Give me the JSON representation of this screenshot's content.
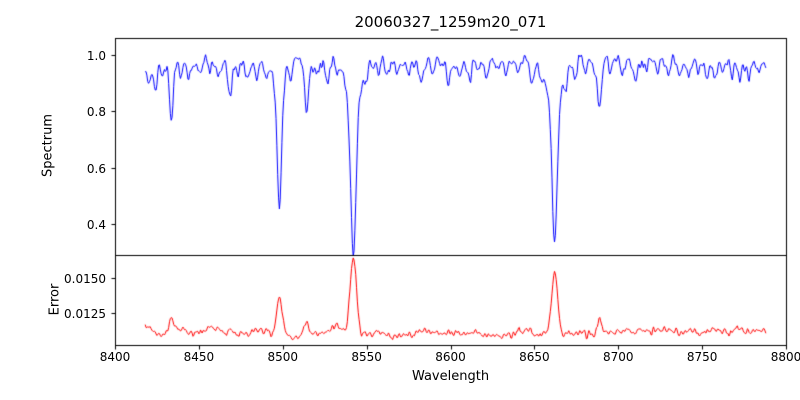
{
  "figure": {
    "title": "20060327_1259m20_071",
    "xlabel": "Wavelength",
    "background": "#ffffff",
    "axis_color": "#000000"
  },
  "chart_data": [
    {
      "type": "line",
      "name": "spectrum-panel",
      "ylabel": "Spectrum",
      "color": "#0000ff",
      "xlim": [
        8400,
        8800
      ],
      "ylim": [
        0.29,
        1.06
      ],
      "yticks": [
        0.4,
        0.6,
        0.8,
        1.0
      ],
      "ytick_decimals": 1,
      "x_start": 8418,
      "x_end": 8788,
      "x_step": 0.5,
      "seed": 11,
      "continuum": 0.975,
      "noise_sigma": 0.011,
      "continuum_wiggle": 0.008,
      "absorption_lines": [
        {
          "c": 8420.5,
          "d": 0.05,
          "w": 0.9
        },
        {
          "c": 8424.2,
          "d": 0.09,
          "w": 1.0
        },
        {
          "c": 8428.6,
          "d": 0.05,
          "w": 0.9
        },
        {
          "c": 8433.6,
          "d": 0.2,
          "w": 1.1
        },
        {
          "c": 8439.4,
          "d": 0.06,
          "w": 0.9
        },
        {
          "c": 8444.0,
          "d": 0.04,
          "w": 0.9
        },
        {
          "c": 8451.0,
          "d": 0.06,
          "w": 1.0
        },
        {
          "c": 8456.3,
          "d": 0.04,
          "w": 0.9
        },
        {
          "c": 8462.0,
          "d": 0.05,
          "w": 0.9
        },
        {
          "c": 8468.4,
          "d": 0.11,
          "w": 1.1
        },
        {
          "c": 8473.5,
          "d": 0.04,
          "w": 0.9
        },
        {
          "c": 8478.8,
          "d": 0.04,
          "w": 0.9
        },
        {
          "c": 8484.4,
          "d": 0.05,
          "w": 0.9
        },
        {
          "c": 8490.2,
          "d": 0.04,
          "w": 0.9
        },
        {
          "c": 8498.0,
          "d": 0.42,
          "w": 1.3
        },
        {
          "c": 8498.0,
          "d": 0.09,
          "w": 3.6
        },
        {
          "c": 8505.0,
          "d": 0.05,
          "w": 0.9
        },
        {
          "c": 8514.1,
          "d": 0.16,
          "w": 1.1
        },
        {
          "c": 8520.5,
          "d": 0.04,
          "w": 0.9
        },
        {
          "c": 8526.7,
          "d": 0.05,
          "w": 0.9
        },
        {
          "c": 8532.3,
          "d": 0.04,
          "w": 0.9
        },
        {
          "c": 8542.1,
          "d": 0.55,
          "w": 1.6
        },
        {
          "c": 8542.1,
          "d": 0.12,
          "w": 5.0
        },
        {
          "c": 8550.4,
          "d": 0.04,
          "w": 0.9
        },
        {
          "c": 8556.8,
          "d": 0.04,
          "w": 0.9
        },
        {
          "c": 8561.9,
          "d": 0.05,
          "w": 0.9
        },
        {
          "c": 8568.3,
          "d": 0.04,
          "w": 0.9
        },
        {
          "c": 8575.1,
          "d": 0.05,
          "w": 0.9
        },
        {
          "c": 8582.3,
          "d": 0.07,
          "w": 1.0
        },
        {
          "c": 8589.5,
          "d": 0.04,
          "w": 0.9
        },
        {
          "c": 8598.8,
          "d": 0.09,
          "w": 1.0
        },
        {
          "c": 8605.2,
          "d": 0.04,
          "w": 0.9
        },
        {
          "c": 8611.4,
          "d": 0.07,
          "w": 1.0
        },
        {
          "c": 8616.6,
          "d": 0.04,
          "w": 0.9
        },
        {
          "c": 8621.4,
          "d": 0.06,
          "w": 1.0
        },
        {
          "c": 8627.5,
          "d": 0.04,
          "w": 0.9
        },
        {
          "c": 8633.0,
          "d": 0.04,
          "w": 0.9
        },
        {
          "c": 8640.1,
          "d": 0.05,
          "w": 0.9
        },
        {
          "c": 8648.5,
          "d": 0.06,
          "w": 1.0
        },
        {
          "c": 8654.0,
          "d": 0.04,
          "w": 0.9
        },
        {
          "c": 8662.1,
          "d": 0.5,
          "w": 1.5
        },
        {
          "c": 8662.1,
          "d": 0.13,
          "w": 4.5
        },
        {
          "c": 8668.9,
          "d": 0.04,
          "w": 0.9
        },
        {
          "c": 8674.8,
          "d": 0.07,
          "w": 1.0
        },
        {
          "c": 8680.4,
          "d": 0.04,
          "w": 0.9
        },
        {
          "c": 8688.6,
          "d": 0.19,
          "w": 1.3
        },
        {
          "c": 8695.2,
          "d": 0.05,
          "w": 0.9
        },
        {
          "c": 8702.3,
          "d": 0.04,
          "w": 0.9
        },
        {
          "c": 8710.4,
          "d": 0.06,
          "w": 1.0
        },
        {
          "c": 8717.0,
          "d": 0.04,
          "w": 0.9
        },
        {
          "c": 8723.6,
          "d": 0.04,
          "w": 0.9
        },
        {
          "c": 8729.9,
          "d": 0.05,
          "w": 0.9
        },
        {
          "c": 8736.4,
          "d": 0.06,
          "w": 1.0
        },
        {
          "c": 8742.0,
          "d": 0.04,
          "w": 0.9
        },
        {
          "c": 8747.8,
          "d": 0.05,
          "w": 0.9
        },
        {
          "c": 8752.9,
          "d": 0.04,
          "w": 0.9
        },
        {
          "c": 8757.6,
          "d": 0.06,
          "w": 1.0
        },
        {
          "c": 8762.3,
          "d": 0.04,
          "w": 0.9
        },
        {
          "c": 8767.9,
          "d": 0.05,
          "w": 0.9
        },
        {
          "c": 8772.5,
          "d": 0.06,
          "w": 1.0
        },
        {
          "c": 8778.2,
          "d": 0.04,
          "w": 0.9
        },
        {
          "c": 8783.5,
          "d": 0.04,
          "w": 0.9
        }
      ]
    },
    {
      "type": "line",
      "name": "error-panel",
      "ylabel": "Error",
      "color": "#ff0000",
      "xlim": [
        8400,
        8800
      ],
      "ylim": [
        0.0102,
        0.0166
      ],
      "xticks": [
        8400,
        8450,
        8500,
        8550,
        8600,
        8650,
        8700,
        8750,
        8800
      ],
      "yticks": [
        0.0125,
        0.015
      ],
      "ytick_decimals": 4,
      "x_start": 8418,
      "x_end": 8788,
      "x_step": 0.5,
      "seed": 23,
      "baseline": 0.011,
      "noise_sigma": 0.00013,
      "baseline_wiggle": 0.00012,
      "edge_rise": 0.0002,
      "peaks": [
        {
          "c": 8433.6,
          "a": 0.0007,
          "w": 1.2
        },
        {
          "c": 8468.4,
          "a": 0.0004,
          "w": 1.1
        },
        {
          "c": 8498.0,
          "a": 0.0024,
          "w": 1.6
        },
        {
          "c": 8514.1,
          "a": 0.0007,
          "w": 1.2
        },
        {
          "c": 8542.1,
          "a": 0.0054,
          "w": 1.9
        },
        {
          "c": 8662.1,
          "a": 0.004,
          "w": 1.8
        },
        {
          "c": 8688.6,
          "a": 0.0008,
          "w": 1.3
        }
      ]
    }
  ]
}
